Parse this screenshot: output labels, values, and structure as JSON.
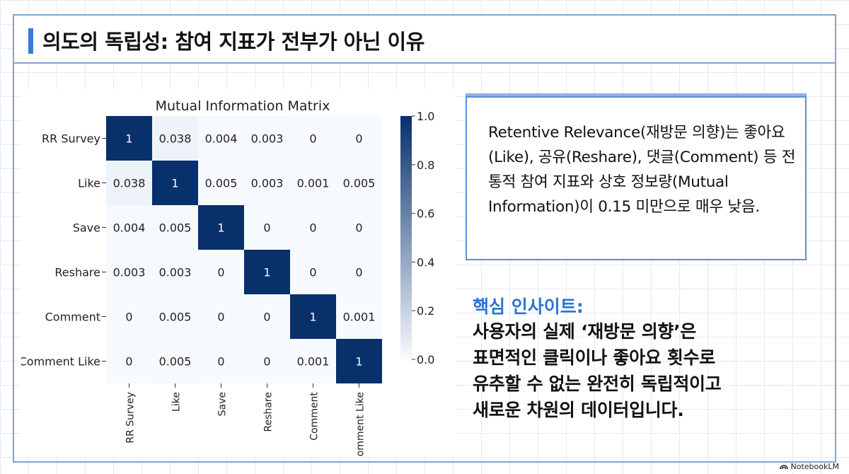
{
  "page": {
    "title": "의도의 독립성: 참여 지표가 전부가 아닌 이유"
  },
  "info_box": {
    "text": "Retentive Relevance(재방문 의향)는 좋아요(Like), 공유(Reshare), 댓글(Comment) 등 전통적 참여 지표와 상호 정보량(Mutual Information)이 0.15 미만으로 매우 낮음."
  },
  "insight": {
    "title": "핵심 인사이트:",
    "lines": [
      "사용자의 실제 ‘재방문 의향’은",
      "표면적인 클릭이나 좋아요 횟수로",
      "유추할 수 없는 완전히 독립적이고",
      "새로운 차원의 데이터입니다."
    ]
  },
  "watermark": {
    "text": "NotebookLM",
    "icon": "notebooklm-icon"
  },
  "colors": {
    "accent": "#3a7ad8",
    "insight_title": "#2b74d4",
    "cmap_low": "#f7fbff",
    "cmap_high": "#08306b"
  },
  "chart_data": {
    "type": "heatmap",
    "title": "Mutual Information Matrix",
    "rows": [
      "RR Survey",
      "Like",
      "Save",
      "Reshare",
      "Comment",
      "Comment Like"
    ],
    "cols": [
      "RR Survey",
      "Like",
      "Save",
      "Reshare",
      "Comment",
      "Comment Like"
    ],
    "values": [
      [
        1,
        0.038,
        0.004,
        0.003,
        0,
        0
      ],
      [
        0.038,
        1,
        0.005,
        0.003,
        0.001,
        0.005
      ],
      [
        0.004,
        0.005,
        1,
        0,
        0,
        0
      ],
      [
        0.003,
        0.003,
        0,
        1,
        0,
        0
      ],
      [
        0,
        0.005,
        0,
        0,
        1,
        0.001
      ],
      [
        0,
        0.005,
        0,
        0,
        0.001,
        1
      ]
    ],
    "value_labels": [
      [
        "1",
        "0.038",
        "0.004",
        "0.003",
        "0",
        "0"
      ],
      [
        "0.038",
        "1",
        "0.005",
        "0.003",
        "0.001",
        "0.005"
      ],
      [
        "0.004",
        "0.005",
        "1",
        "0",
        "0",
        "0"
      ],
      [
        "0.003",
        "0.003",
        "0",
        "1",
        "0",
        "0"
      ],
      [
        "0",
        "0.005",
        "0",
        "0",
        "1",
        "0.001"
      ],
      [
        "0",
        "0.005",
        "0",
        "0",
        "0.001",
        "1"
      ]
    ],
    "colorbar": {
      "min": 0.0,
      "max": 1.0,
      "ticks": [
        0.0,
        0.2,
        0.4,
        0.6,
        0.8,
        1.0
      ],
      "tick_labels": [
        "0.0",
        "0.2",
        "0.4",
        "0.6",
        "0.8",
        "1.0"
      ]
    },
    "colormap": "Blues",
    "grid": false
  }
}
